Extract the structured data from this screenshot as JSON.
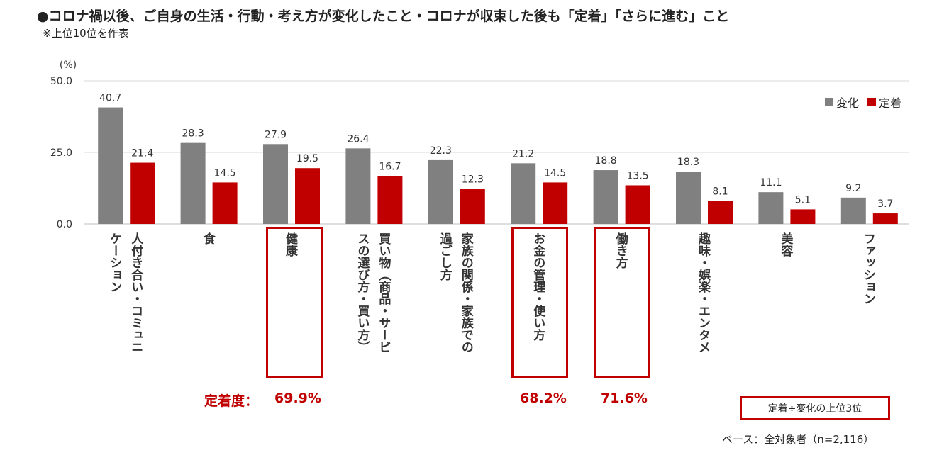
{
  "header": {
    "title": "●コロナ禍以後、ご自身の生活・行動・考え方が変化したこと・コロナが収束した後も「定着」「さらに進む」こと",
    "subtitle": "※上位10位を作表"
  },
  "chart_data": {
    "type": "bar",
    "unit_label": "(%)",
    "ylim": [
      0,
      50
    ],
    "yticks": [
      "0.0",
      "25.0",
      "50.0"
    ],
    "grid": true,
    "legend_position": "top-right",
    "categories": [
      [
        "人付き合い・コミュニ",
        "ケーション"
      ],
      [
        "食"
      ],
      [
        "健康"
      ],
      [
        "買い物（商品・サービ",
        "スの選び方・買い方）"
      ],
      [
        "家族の関係・家族での",
        "過ごし方"
      ],
      [
        "お金の管理・使い方"
      ],
      [
        "働き方"
      ],
      [
        "趣味・娯楽・エンタメ"
      ],
      [
        "美容"
      ],
      [
        "ファッション"
      ]
    ],
    "series": [
      {
        "name": "変化",
        "color": "#808080",
        "values": [
          40.7,
          28.3,
          27.9,
          26.4,
          22.3,
          21.2,
          18.8,
          18.3,
          11.1,
          9.2
        ]
      },
      {
        "name": "定着",
        "color": "#c00000",
        "values": [
          21.4,
          14.5,
          19.5,
          16.7,
          12.3,
          14.5,
          13.5,
          8.1,
          5.1,
          3.7
        ]
      }
    ],
    "data_labels": [
      [
        "40.7",
        "28.3",
        "27.9",
        "26.4",
        "22.3",
        "21.2",
        "18.8",
        "18.3",
        "11.1",
        "9.2"
      ],
      [
        "21.4",
        "14.5",
        "19.5",
        "16.7",
        "12.3",
        "14.5",
        "13.5",
        "8.1",
        "5.1",
        "3.7"
      ]
    ],
    "highlighted_categories": [
      2,
      5,
      6
    ]
  },
  "annotations": {
    "ratio_prefix": "定着度：",
    "ratios": [
      "69.9%",
      "68.2%",
      "71.6%"
    ],
    "note": "定着÷変化の上位3位",
    "base": "ベース：全対象者（n=2,116）"
  }
}
